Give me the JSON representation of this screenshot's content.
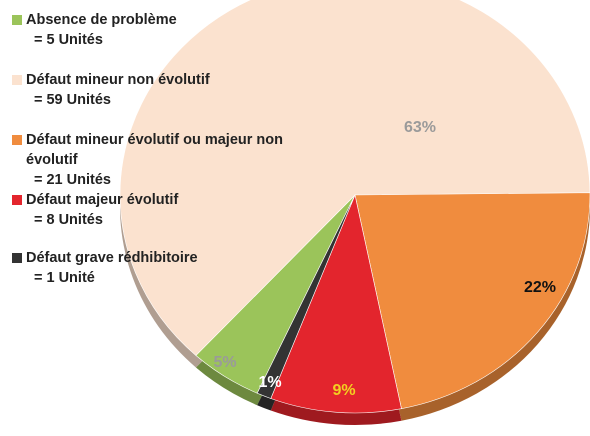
{
  "chart_data": {
    "type": "pie",
    "categories": [
      "Absence de problème",
      "Défaut mineur non évolutif",
      "Défaut mineur évolutif ou majeur non évolutif",
      "Défaut majeur évolutif",
      "Défaut grave rédhibitoire"
    ],
    "legend_counts": [
      "= 5 Unités",
      "= 59 Unités",
      "= 21 Unités",
      "= 8 Unités",
      "= 1 Unité"
    ],
    "values": [
      5,
      63,
      22,
      9,
      1
    ],
    "value_labels": [
      "5%",
      "63%",
      "22%",
      "9%",
      "1%"
    ],
    "colors": [
      "#9bc45a",
      "#fbe2cf",
      "#f08c3e",
      "#e3252d",
      "#333333"
    ],
    "label_colors": [
      "#9a9a9a",
      "#9a9a9a",
      "#111111",
      "#f3d020",
      "#ffffff"
    ]
  }
}
